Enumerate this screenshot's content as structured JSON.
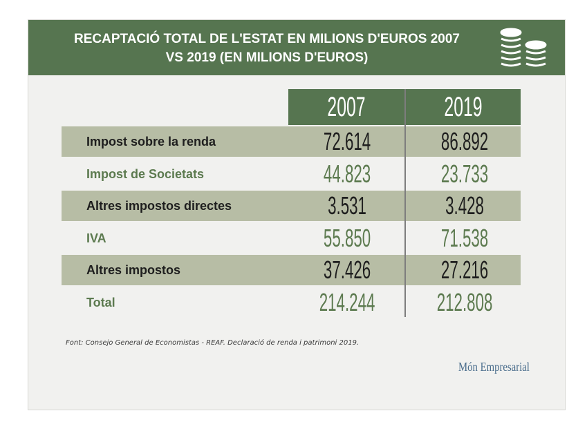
{
  "header": {
    "title_line1": "RECAPTACIÓ TOTAL DE L'ESTAT EN MILIONS D'EUROS 2007",
    "title_line2": "VS 2019 (EN MILIONS D'EUROS)",
    "icon": "coins-stack-icon"
  },
  "chart_data": {
    "type": "table",
    "columns": [
      "2007",
      "2019"
    ],
    "rows": [
      {
        "label": "Impost sobre la renda",
        "values": [
          "72.614",
          "86.892"
        ]
      },
      {
        "label": "Impost de Societats",
        "values": [
          "44.823",
          "23.733"
        ]
      },
      {
        "label": "Altres impostos directes",
        "values": [
          "3.531",
          "3.428"
        ]
      },
      {
        "label": "IVA",
        "values": [
          "55.850",
          "71.538"
        ]
      },
      {
        "label": "Altres impostos",
        "values": [
          "37.426",
          "27.216"
        ]
      },
      {
        "label": "Total",
        "values": [
          "214.244",
          "212.808"
        ]
      }
    ]
  },
  "footer": {
    "source": "Font: Consejo General de Economistas - REAF. Declaració de renda i patrimoni 2019.",
    "brand": "Món Empresarial"
  },
  "colors": {
    "header_green": "#567550",
    "row_shade": "#b7bda5",
    "text_green": "#5c7a4f",
    "brand_blue": "#4a6d8c"
  }
}
